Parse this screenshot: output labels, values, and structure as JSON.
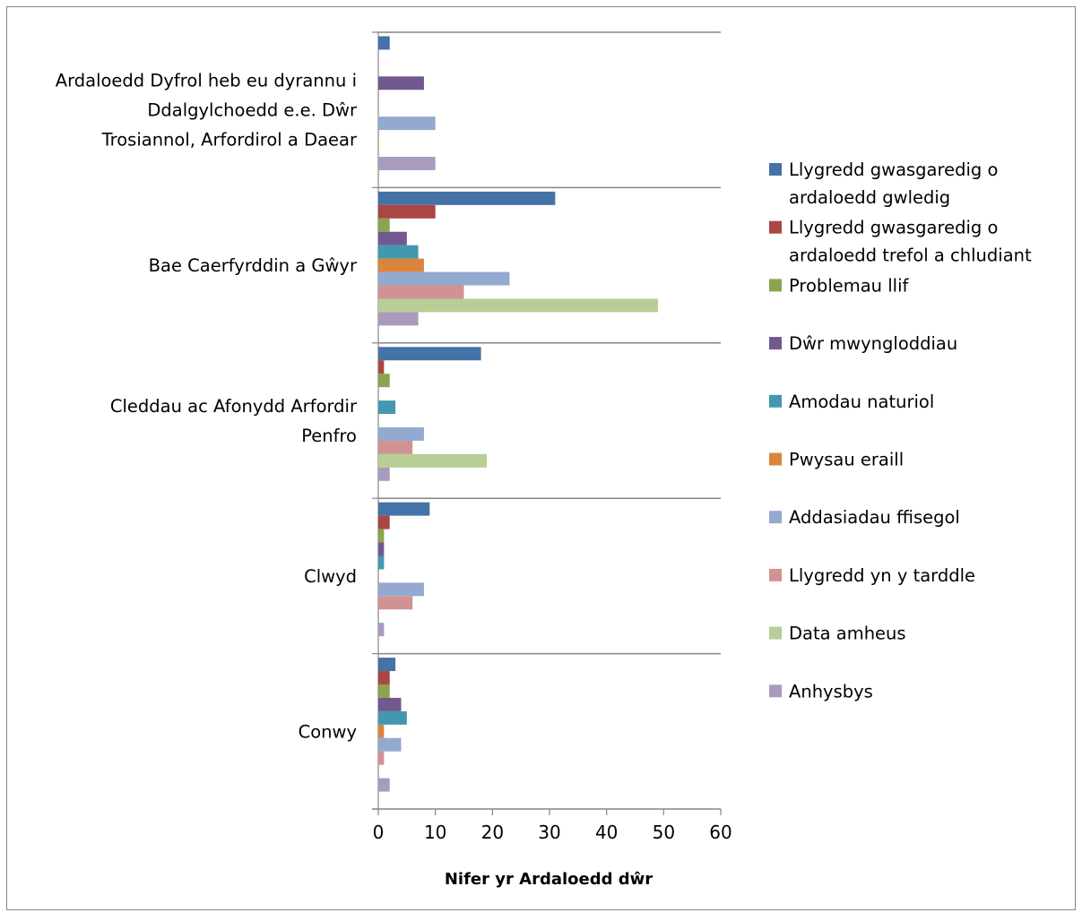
{
  "chart_data": {
    "type": "bar",
    "orientation": "horizontal",
    "xlabel": "Nifer yr Ardaloedd dŵr",
    "ylabel": "",
    "xlim": [
      0,
      60
    ],
    "xticks": [
      0,
      10,
      20,
      30,
      40,
      50,
      60
    ],
    "grid": "horizontal separators between categories",
    "legend_position": "right",
    "categories": [
      {
        "lines": [
          "Ardaloedd Dyfrol heb eu dyrannu i",
          "Ddalgylchoedd e.e. Dŵr",
          "Trosiannol, Arfordirol a Daear"
        ]
      },
      {
        "lines": [
          "Bae Caerfyrddin a Gŵyr"
        ]
      },
      {
        "lines": [
          "Cleddau ac Afonydd Arfordir",
          "Penfro"
        ]
      },
      {
        "lines": [
          "Clwyd"
        ]
      },
      {
        "lines": [
          "Conwy"
        ]
      }
    ],
    "series": [
      {
        "name_lines": [
          "Llygredd gwasgaredig o",
          "ardaloedd gwledig"
        ],
        "color": "#4572A7",
        "values": [
          2,
          31,
          18,
          9,
          3
        ]
      },
      {
        "name_lines": [
          "Llygredd gwasgaredig o",
          "ardaloedd trefol a chludiant"
        ],
        "color": "#AA4643",
        "values": [
          0,
          10,
          1,
          2,
          2
        ]
      },
      {
        "name_lines": [
          "Problemau llif"
        ],
        "color": "#89A54E",
        "values": [
          0,
          2,
          2,
          1,
          2
        ]
      },
      {
        "name_lines": [
          "Dŵr mwyngloddiau"
        ],
        "color": "#71588F",
        "values": [
          8,
          5,
          0,
          1,
          4
        ]
      },
      {
        "name_lines": [
          "Amodau naturiol"
        ],
        "color": "#4198AF",
        "values": [
          0,
          7,
          3,
          1,
          5
        ]
      },
      {
        "name_lines": [
          "Pwysau eraill"
        ],
        "color": "#DB843D",
        "values": [
          0,
          8,
          0,
          0,
          1
        ]
      },
      {
        "name_lines": [
          "Addasiadau ffisegol"
        ],
        "color": "#93A9CF",
        "values": [
          10,
          23,
          8,
          8,
          4
        ]
      },
      {
        "name_lines": [
          "Llygredd yn y tarddle"
        ],
        "color": "#D19392",
        "values": [
          0,
          15,
          6,
          6,
          1
        ]
      },
      {
        "name_lines": [
          "Data amheus"
        ],
        "color": "#B9CD96",
        "values": [
          0,
          49,
          19,
          0,
          0
        ]
      },
      {
        "name_lines": [
          "Anhysbys"
        ],
        "color": "#A99BBD",
        "values": [
          10,
          7,
          2,
          1,
          2
        ]
      }
    ]
  }
}
